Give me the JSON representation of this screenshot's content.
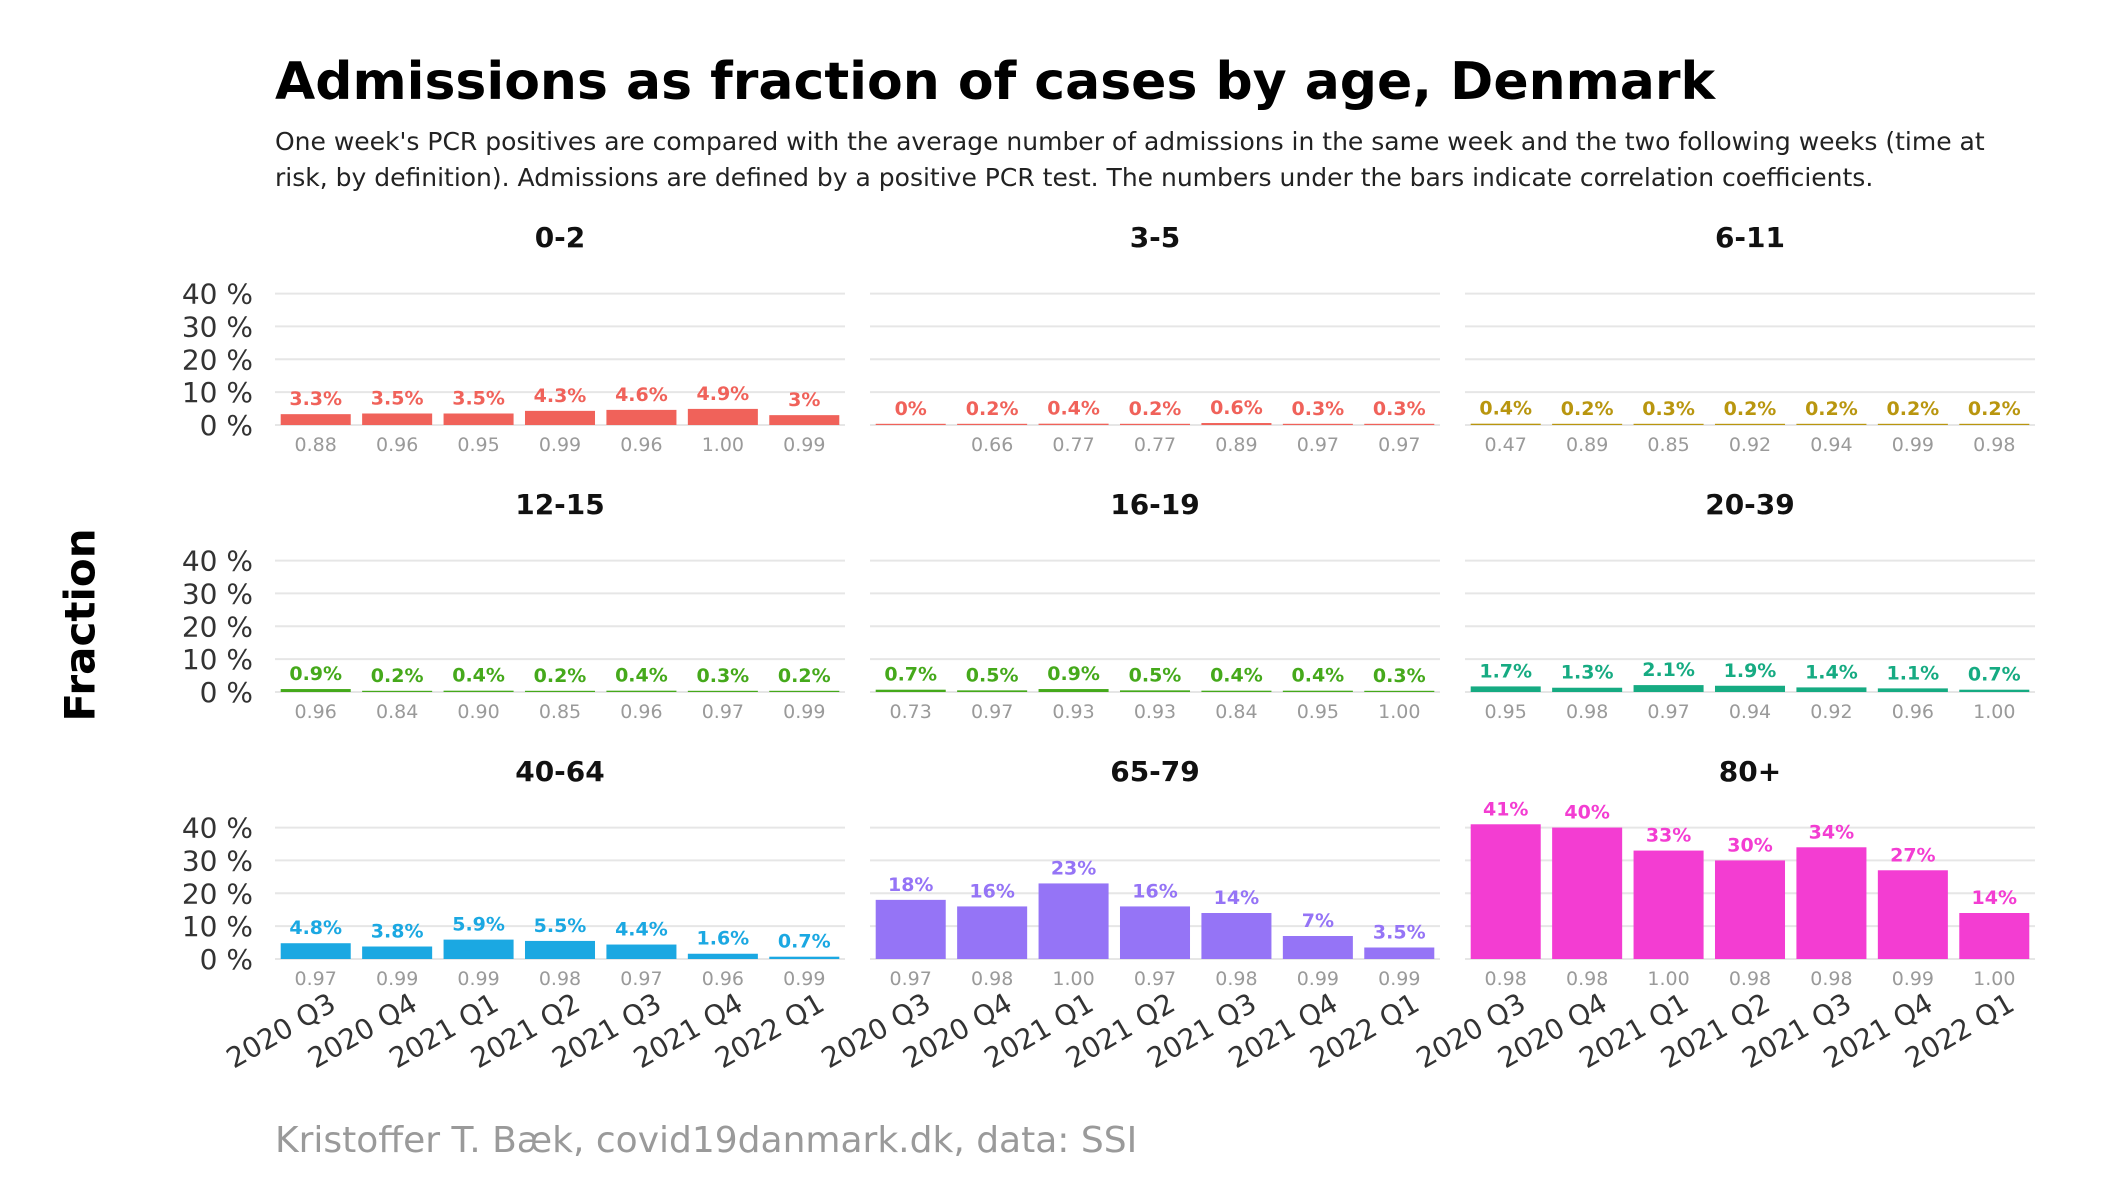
{
  "title": "Admissions as fraction of cases by age, Denmark",
  "subtitle": "One week's PCR positives are compared with the average number of admissions in the same week and the two following weeks (time at risk, by definition). Admissions are defined by a positive PCR test. The numbers under the bars indicate correlation coefficients.",
  "y_axis_label": "Fraction",
  "caption": "Kristoffer T. Bæk, covid19danmark.dk, data: SSI",
  "chart_data": {
    "type": "bar",
    "layout": "facet grid 3x3",
    "categories": [
      "2020 Q3",
      "2020 Q4",
      "2021 Q1",
      "2021 Q2",
      "2021 Q3",
      "2021 Q4",
      "2022 Q1"
    ],
    "y_ticks": [
      "0 %",
      "10 %",
      "20 %",
      "30 %",
      "40 %"
    ],
    "ylim": [
      0,
      42
    ],
    "grid": true,
    "legend": "none",
    "value_unit": "percent",
    "panels": [
      {
        "label": "0-2",
        "color": "#f0625a",
        "values": [
          3.3,
          3.5,
          3.5,
          4.3,
          4.6,
          4.9,
          3.0
        ],
        "value_labels": [
          "3.3%",
          "3.5%",
          "3.5%",
          "4.3%",
          "4.6%",
          "4.9%",
          "3%"
        ],
        "correlations": [
          "0.88",
          "0.96",
          "0.95",
          "0.99",
          "0.96",
          "1.00",
          "0.99"
        ]
      },
      {
        "label": "3-5",
        "color": "#f0625a",
        "values": [
          0,
          0.2,
          0.4,
          0.2,
          0.6,
          0.3,
          0.3
        ],
        "value_labels": [
          "0%",
          "0.2%",
          "0.4%",
          "0.2%",
          "0.6%",
          "0.3%",
          "0.3%"
        ],
        "correlations": [
          "",
          "0.66",
          "0.77",
          "0.77",
          "0.89",
          "0.97",
          "0.97"
        ]
      },
      {
        "label": "6-11",
        "color": "#b9960f",
        "values": [
          0.4,
          0.2,
          0.3,
          0.2,
          0.2,
          0.2,
          0.2
        ],
        "value_labels": [
          "0.4%",
          "0.2%",
          "0.3%",
          "0.2%",
          "0.2%",
          "0.2%",
          "0.2%"
        ],
        "correlations": [
          "0.47",
          "0.89",
          "0.85",
          "0.92",
          "0.94",
          "0.99",
          "0.98"
        ]
      },
      {
        "label": "12-15",
        "color": "#45a91b",
        "values": [
          0.9,
          0.2,
          0.4,
          0.2,
          0.4,
          0.3,
          0.2
        ],
        "value_labels": [
          "0.9%",
          "0.2%",
          "0.4%",
          "0.2%",
          "0.4%",
          "0.3%",
          "0.2%"
        ],
        "correlations": [
          "0.96",
          "0.84",
          "0.90",
          "0.85",
          "0.96",
          "0.97",
          "0.99"
        ]
      },
      {
        "label": "16-19",
        "color": "#45a91b",
        "values": [
          0.7,
          0.5,
          0.9,
          0.5,
          0.4,
          0.4,
          0.3
        ],
        "value_labels": [
          "0.7%",
          "0.5%",
          "0.9%",
          "0.5%",
          "0.4%",
          "0.4%",
          "0.3%"
        ],
        "correlations": [
          "0.73",
          "0.97",
          "0.93",
          "0.93",
          "0.84",
          "0.95",
          "1.00"
        ]
      },
      {
        "label": "20-39",
        "color": "#16ab82",
        "values": [
          1.7,
          1.3,
          2.1,
          1.9,
          1.4,
          1.1,
          0.7
        ],
        "value_labels": [
          "1.7%",
          "1.3%",
          "2.1%",
          "1.9%",
          "1.4%",
          "1.1%",
          "0.7%"
        ],
        "correlations": [
          "0.95",
          "0.98",
          "0.97",
          "0.94",
          "0.92",
          "0.96",
          "1.00"
        ]
      },
      {
        "label": "40-64",
        "color": "#1ba8e2",
        "values": [
          4.8,
          3.8,
          5.9,
          5.5,
          4.4,
          1.6,
          0.7
        ],
        "value_labels": [
          "4.8%",
          "3.8%",
          "5.9%",
          "5.5%",
          "4.4%",
          "1.6%",
          "0.7%"
        ],
        "correlations": [
          "0.97",
          "0.99",
          "0.99",
          "0.98",
          "0.97",
          "0.96",
          "0.99"
        ]
      },
      {
        "label": "65-79",
        "color": "#9574f6",
        "values": [
          18,
          16,
          23,
          16,
          14,
          7,
          3.5
        ],
        "value_labels": [
          "18%",
          "16%",
          "23%",
          "16%",
          "14%",
          "7%",
          "3.5%"
        ],
        "correlations": [
          "0.97",
          "0.98",
          "1.00",
          "0.97",
          "0.98",
          "0.99",
          "0.99"
        ]
      },
      {
        "label": "80+",
        "color": "#f33dd2",
        "values": [
          41,
          40,
          33,
          30,
          34,
          27,
          14
        ],
        "value_labels": [
          "41%",
          "40%",
          "33%",
          "30%",
          "34%",
          "27%",
          "14%"
        ],
        "correlations": [
          "0.98",
          "0.98",
          "1.00",
          "0.98",
          "0.98",
          "0.99",
          "1.00"
        ]
      }
    ]
  }
}
